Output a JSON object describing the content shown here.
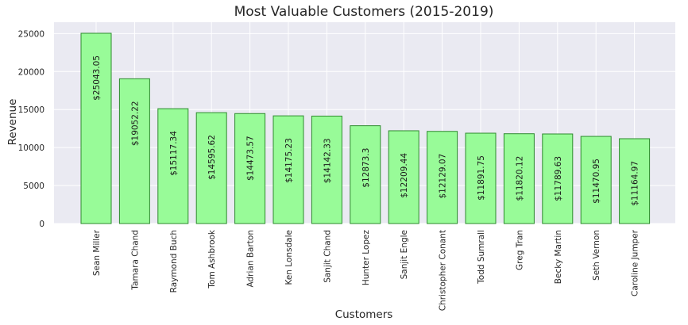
{
  "chart_data": {
    "type": "bar",
    "title": "Most Valuable Customers (2015-2019)",
    "xlabel": "Customers",
    "ylabel": "Revenue",
    "ylim": [
      0,
      26500
    ],
    "yticks": [
      0,
      5000,
      10000,
      15000,
      20000,
      25000
    ],
    "yticks_text": [
      "0",
      "5000",
      "10000",
      "15000",
      "20000",
      "25000"
    ],
    "grid": true,
    "categories": [
      "Sean Miller",
      "Tamara Chand",
      "Raymond Buch",
      "Tom Ashbrook",
      "Adrian Barton",
      "Ken Lonsdale",
      "Sanjit Chand",
      "Hunter Lopez",
      "Sanjit Engle",
      "Christopher Conant",
      "Todd Sumrall",
      "Greg Tran",
      "Becky Martin",
      "Seth Vernon",
      "Caroline Jumper"
    ],
    "values": [
      25043.05,
      19052.22,
      15117.34,
      14595.62,
      14473.57,
      14175.23,
      14142.33,
      12873.3,
      12209.44,
      12129.07,
      11891.75,
      11820.12,
      11789.63,
      11470.95,
      11164.97
    ],
    "value_labels": [
      "$25043.05",
      "$19052.22",
      "$15117.34",
      "$14595.62",
      "$14473.57",
      "$14175.23",
      "$14142.33",
      "$12873.3",
      "$12209.44",
      "$12129.07",
      "$11891.75",
      "$11820.12",
      "$11789.63",
      "$11470.95",
      "$11164.97"
    ],
    "colors": {
      "bar_fill": "#98fb98",
      "bar_stroke": "#2e8b2e",
      "plot_background": "#eaeaf2",
      "grid": "#ffffff"
    }
  }
}
